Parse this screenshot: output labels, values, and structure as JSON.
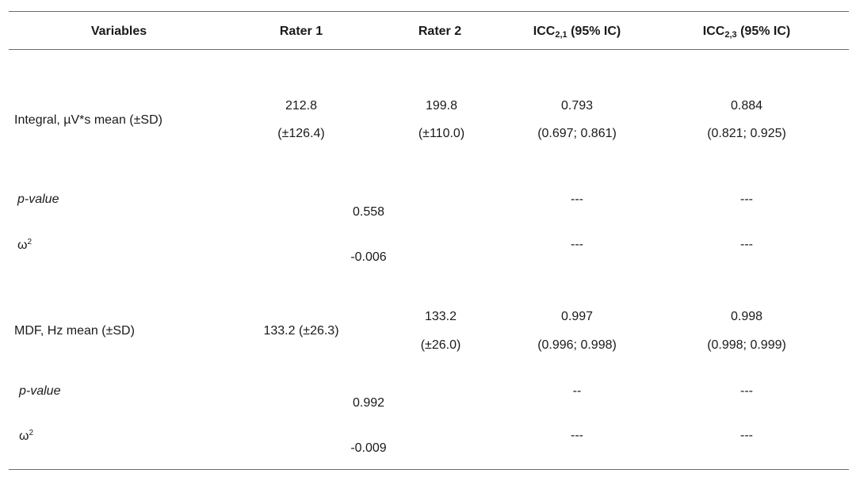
{
  "header": {
    "variables": "Variables",
    "rater1": "Rater 1",
    "rater2": "Rater 2",
    "icc21_prefix": "ICC",
    "icc21_sub": "2,1",
    "icc21_suffix": " (95% IC)",
    "icc23_prefix": "ICC",
    "icc23_sub": "2,3",
    "icc23_suffix": " (95% IC)"
  },
  "integral": {
    "label": "Integral, µV*s mean (±SD)",
    "rater1_mean": "212.8",
    "rater1_sd": "(±126.4)",
    "rater2_mean": "199.8",
    "rater2_sd": "(±110.0)",
    "icc21_value": "0.793",
    "icc21_ci": "(0.697; 0.861)",
    "icc23_value": "0.884",
    "icc23_ci": "(0.821; 0.925)",
    "pvalue_label": "p-value",
    "pvalue": "0.558",
    "pvalue_icc21": "---",
    "pvalue_icc23": "---",
    "omega_label": "ω",
    "omega_sup": "2",
    "omega": "-0.006",
    "omega_icc21": "---",
    "omega_icc23": "---"
  },
  "mdf": {
    "label": "MDF, Hz mean (±SD)",
    "rater1": "133.2 (±26.3)",
    "rater2_mean": "133.2",
    "rater2_sd": "(±26.0)",
    "icc21_value": "0.997",
    "icc21_ci": "(0.996; 0.998)",
    "icc23_value": "0.998",
    "icc23_ci": "(0.998; 0.999)",
    "pvalue_label": "p-value",
    "pvalue": "0.992",
    "pvalue_icc21": "--",
    "pvalue_icc23": "---",
    "omega_label": "ω",
    "omega_sup": "2",
    "omega": "-0.009",
    "omega_icc21": "---",
    "omega_icc23": "---"
  }
}
